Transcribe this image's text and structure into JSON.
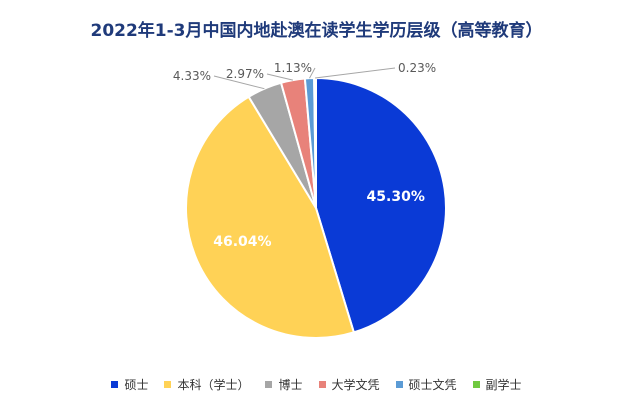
{
  "chart_data": {
    "type": "pie",
    "title": "2022年1-3月中国内地赴澳在读学生学历层级（高等教育）",
    "slices": [
      {
        "name": "硕士",
        "value": 45.3,
        "label": "45.30%",
        "color": "#0a3ad6",
        "label_position": "inside"
      },
      {
        "name": "本科（学士）",
        "value": 46.04,
        "label": "46.04%",
        "color": "#ffd256",
        "label_position": "inside"
      },
      {
        "name": "博士",
        "value": 4.33,
        "label": "4.33%",
        "color": "#a6a6a6",
        "label_position": "outside"
      },
      {
        "name": "大学文凭",
        "value": 2.97,
        "label": "2.97%",
        "color": "#e8827a",
        "label_position": "outside"
      },
      {
        "name": "硕士文凭",
        "value": 1.13,
        "label": "1.13%",
        "color": "#5b9bd5",
        "label_position": "outside"
      },
      {
        "name": "副学士",
        "value": 0.23,
        "label": "0.23%",
        "color": "#70c940",
        "label_position": "outside"
      }
    ],
    "start_angle_deg": 0,
    "direction": "clockwise",
    "legend": "bottom"
  }
}
